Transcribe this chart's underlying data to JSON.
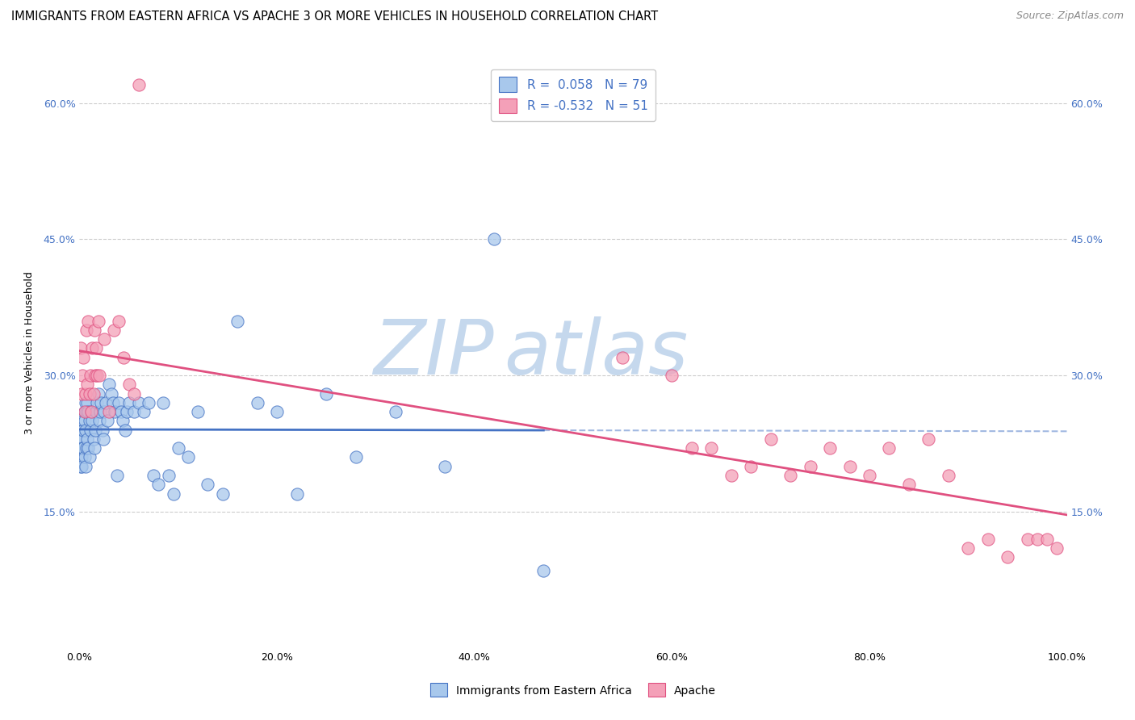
{
  "title": "IMMIGRANTS FROM EASTERN AFRICA VS APACHE 3 OR MORE VEHICLES IN HOUSEHOLD CORRELATION CHART",
  "source": "Source: ZipAtlas.com",
  "ylabel": "3 or more Vehicles in Household",
  "legend_label1": "Immigrants from Eastern Africa",
  "legend_label2": "Apache",
  "R1": 0.058,
  "N1": 79,
  "R2": -0.532,
  "N2": 51,
  "watermark_zip": "ZIP",
  "watermark_atlas": "atlas",
  "xlim": [
    0.0,
    1.0
  ],
  "ylim": [
    0.0,
    0.65
  ],
  "xticks": [
    0.0,
    0.2,
    0.4,
    0.6,
    0.8,
    1.0
  ],
  "xticklabels": [
    "0.0%",
    "20.0%",
    "40.0%",
    "60.0%",
    "80.0%",
    "100.0%"
  ],
  "ytick_positions": [
    0.15,
    0.3,
    0.45,
    0.6
  ],
  "ytick_labels": [
    "15.0%",
    "30.0%",
    "45.0%",
    "60.0%"
  ],
  "color1": "#A8C8EC",
  "color2": "#F4A0B8",
  "line_color1": "#4472C4",
  "line_color2": "#E05080",
  "scatter1_x": [
    0.001,
    0.001,
    0.001,
    0.002,
    0.002,
    0.002,
    0.002,
    0.003,
    0.003,
    0.003,
    0.004,
    0.004,
    0.004,
    0.005,
    0.005,
    0.005,
    0.006,
    0.006,
    0.006,
    0.007,
    0.007,
    0.008,
    0.008,
    0.009,
    0.009,
    0.01,
    0.01,
    0.011,
    0.012,
    0.013,
    0.014,
    0.015,
    0.016,
    0.017,
    0.018,
    0.019,
    0.02,
    0.021,
    0.022,
    0.023,
    0.024,
    0.025,
    0.027,
    0.028,
    0.03,
    0.032,
    0.034,
    0.036,
    0.038,
    0.04,
    0.042,
    0.044,
    0.046,
    0.048,
    0.05,
    0.055,
    0.06,
    0.065,
    0.07,
    0.075,
    0.08,
    0.085,
    0.09,
    0.095,
    0.1,
    0.11,
    0.12,
    0.13,
    0.145,
    0.16,
    0.18,
    0.2,
    0.22,
    0.25,
    0.28,
    0.32,
    0.37,
    0.42,
    0.47
  ],
  "scatter1_y": [
    0.22,
    0.21,
    0.2,
    0.23,
    0.22,
    0.21,
    0.2,
    0.24,
    0.23,
    0.22,
    0.25,
    0.24,
    0.22,
    0.26,
    0.25,
    0.21,
    0.27,
    0.24,
    0.2,
    0.26,
    0.22,
    0.27,
    0.23,
    0.26,
    0.22,
    0.25,
    0.21,
    0.24,
    0.26,
    0.25,
    0.23,
    0.22,
    0.24,
    0.26,
    0.27,
    0.28,
    0.25,
    0.26,
    0.27,
    0.24,
    0.23,
    0.26,
    0.27,
    0.25,
    0.29,
    0.28,
    0.27,
    0.26,
    0.19,
    0.27,
    0.26,
    0.25,
    0.24,
    0.26,
    0.27,
    0.26,
    0.27,
    0.26,
    0.27,
    0.19,
    0.18,
    0.27,
    0.19,
    0.17,
    0.22,
    0.21,
    0.26,
    0.18,
    0.17,
    0.36,
    0.27,
    0.26,
    0.17,
    0.28,
    0.21,
    0.26,
    0.2,
    0.45,
    0.085
  ],
  "scatter2_x": [
    0.001,
    0.002,
    0.003,
    0.004,
    0.005,
    0.006,
    0.007,
    0.008,
    0.009,
    0.01,
    0.011,
    0.012,
    0.013,
    0.014,
    0.015,
    0.016,
    0.017,
    0.018,
    0.019,
    0.02,
    0.025,
    0.03,
    0.035,
    0.04,
    0.045,
    0.05,
    0.055,
    0.55,
    0.6,
    0.62,
    0.64,
    0.66,
    0.68,
    0.7,
    0.72,
    0.74,
    0.76,
    0.78,
    0.8,
    0.82,
    0.84,
    0.86,
    0.88,
    0.9,
    0.92,
    0.94,
    0.96,
    0.97,
    0.98,
    0.99,
    0.06
  ],
  "scatter2_y": [
    0.33,
    0.28,
    0.3,
    0.32,
    0.26,
    0.28,
    0.35,
    0.29,
    0.36,
    0.28,
    0.3,
    0.26,
    0.33,
    0.28,
    0.35,
    0.3,
    0.33,
    0.3,
    0.36,
    0.3,
    0.34,
    0.26,
    0.35,
    0.36,
    0.32,
    0.29,
    0.28,
    0.32,
    0.3,
    0.22,
    0.22,
    0.19,
    0.2,
    0.23,
    0.19,
    0.2,
    0.22,
    0.2,
    0.19,
    0.22,
    0.18,
    0.23,
    0.19,
    0.11,
    0.12,
    0.1,
    0.12,
    0.12,
    0.12,
    0.11,
    0.62
  ],
  "background_color": "#FFFFFF",
  "grid_color": "#CCCCCC",
  "title_fontsize": 10.5,
  "axis_label_fontsize": 9,
  "tick_fontsize": 9,
  "legend_fontsize": 11,
  "watermark_color_zip": "#C5D8ED",
  "watermark_color_atlas": "#C5D8ED",
  "watermark_fontsize": 68
}
